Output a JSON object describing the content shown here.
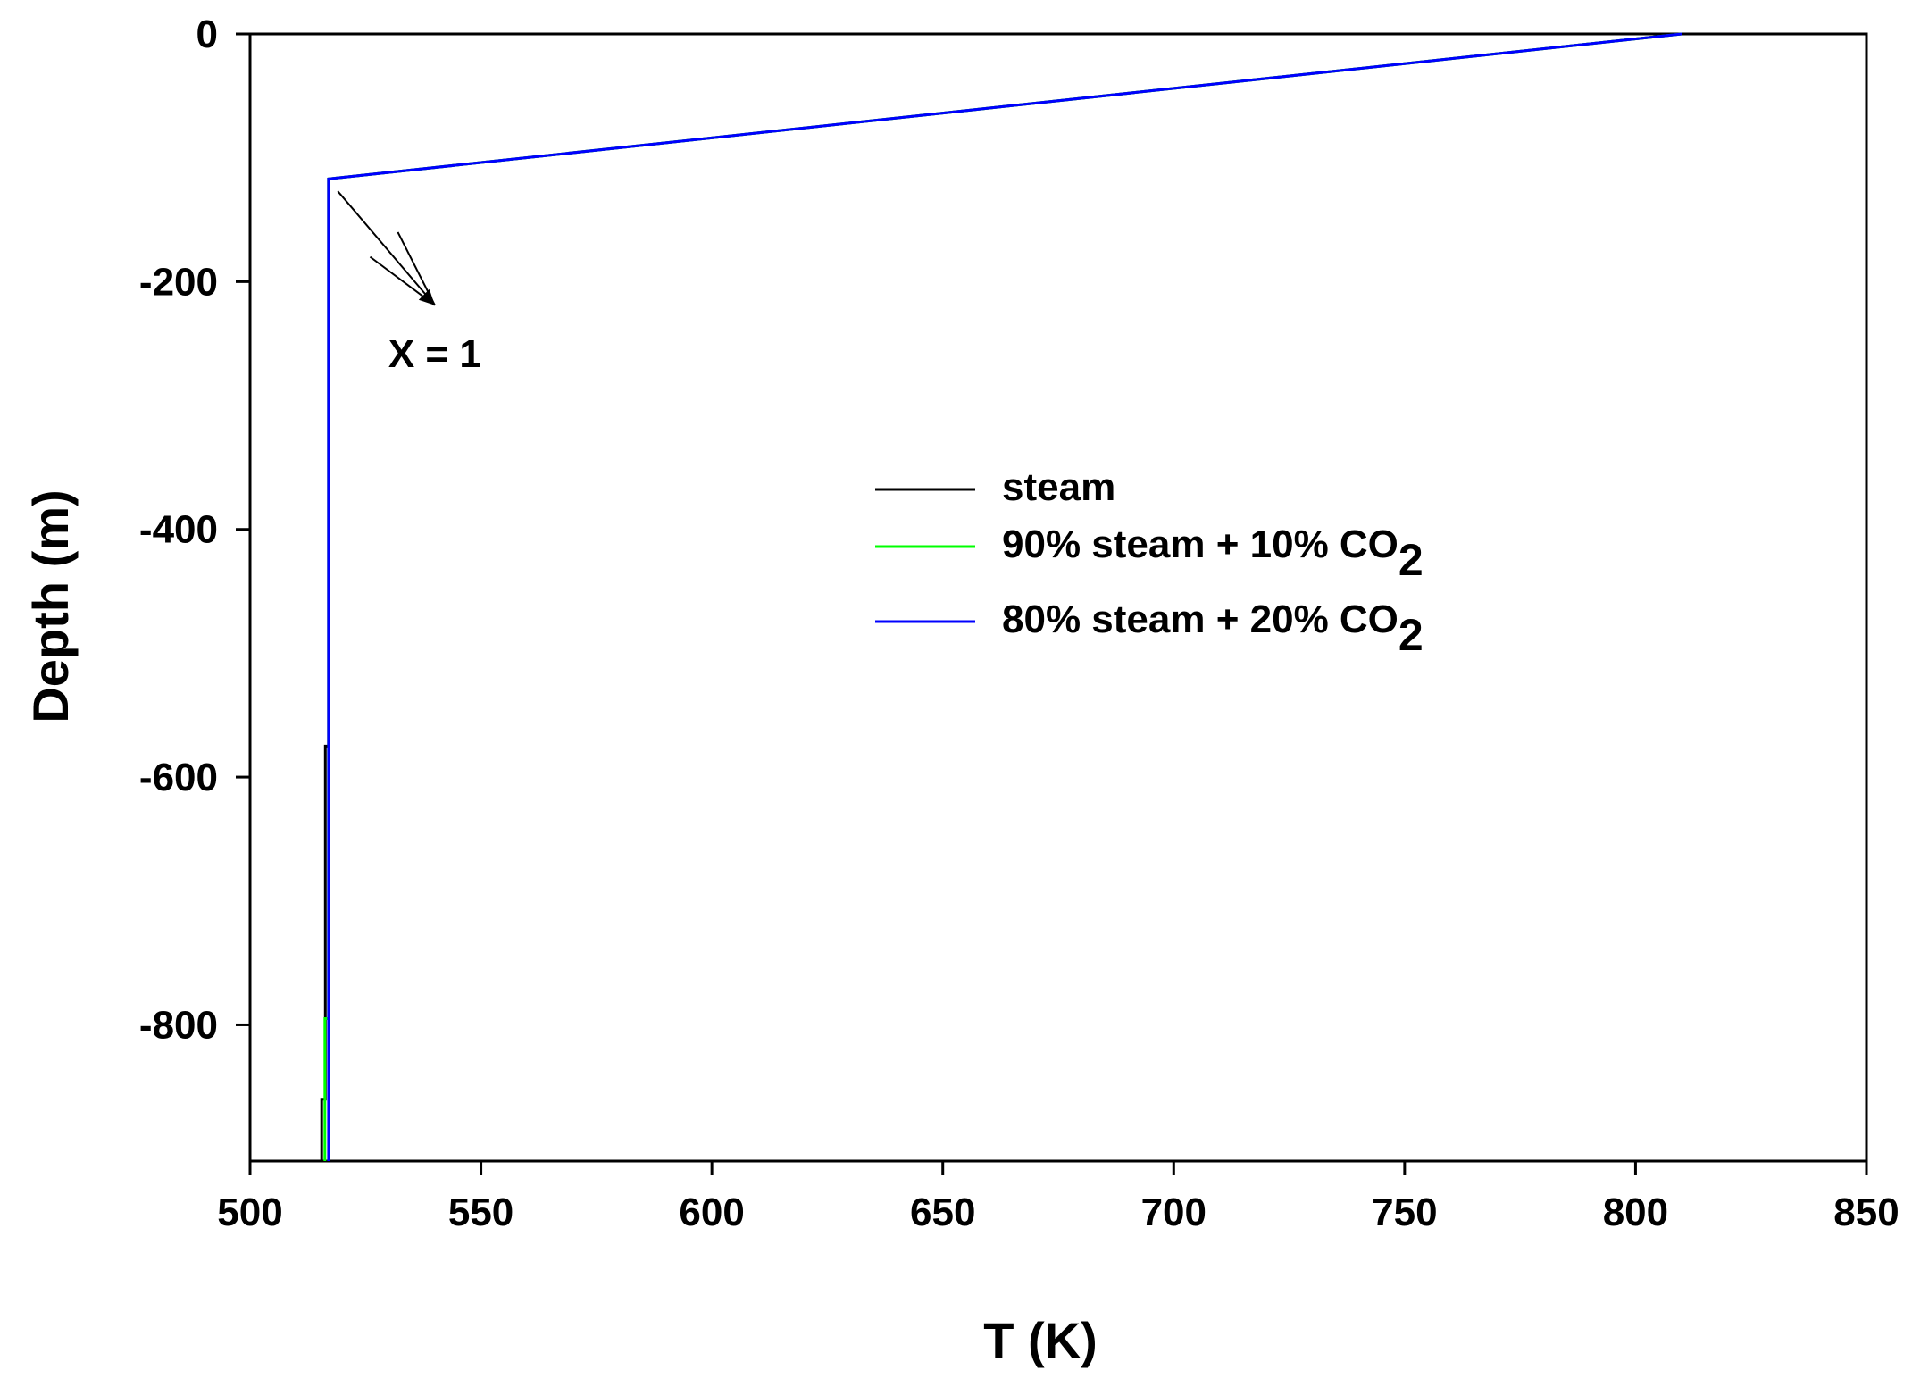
{
  "chart_data": {
    "type": "line",
    "title": "",
    "xlabel": "T (K)",
    "ylabel": "Depth (m)",
    "xlim": [
      500,
      850
    ],
    "ylim": [
      -910,
      0
    ],
    "xticks": [
      500,
      550,
      600,
      650,
      700,
      750,
      800,
      850
    ],
    "yticks": [
      0,
      -200,
      -400,
      -600,
      -800
    ],
    "grid": false,
    "legend_position": "center-right",
    "series": [
      {
        "name": "steam",
        "name_parts": [
          "steam",
          ""
        ],
        "color": "#000000",
        "points": [
          [
            810,
            0
          ],
          [
            517,
            -117
          ],
          [
            517,
            -575
          ],
          [
            516.3,
            -575
          ],
          [
            516.3,
            -860
          ],
          [
            515.5,
            -860
          ],
          [
            515.5,
            -910
          ]
        ]
      },
      {
        "name": "90% steam + 10% CO2",
        "name_parts": [
          "90% steam + 10% CO",
          "2"
        ],
        "color": "#00ff00",
        "points": [
          [
            810,
            0
          ],
          [
            517,
            -117
          ],
          [
            517,
            -795
          ],
          [
            516.2,
            -795
          ],
          [
            516.2,
            -910
          ]
        ]
      },
      {
        "name": "80% steam + 20% CO2",
        "name_parts": [
          "80% steam + 20% CO",
          "2"
        ],
        "color": "#0000ff",
        "points": [
          [
            810,
            0
          ],
          [
            517,
            -117
          ],
          [
            517,
            -910
          ]
        ]
      }
    ],
    "annotations": [
      {
        "text": "X = 1",
        "x": 540,
        "y": -258
      }
    ],
    "annotation_arrows": [
      {
        "from": [
          519,
          -127
        ],
        "to": [
          540,
          -219
        ]
      },
      {
        "from": [
          526,
          -180
        ],
        "to": [
          540,
          -219
        ]
      },
      {
        "from": [
          532,
          -160
        ],
        "to": [
          540,
          -219
        ]
      }
    ]
  }
}
